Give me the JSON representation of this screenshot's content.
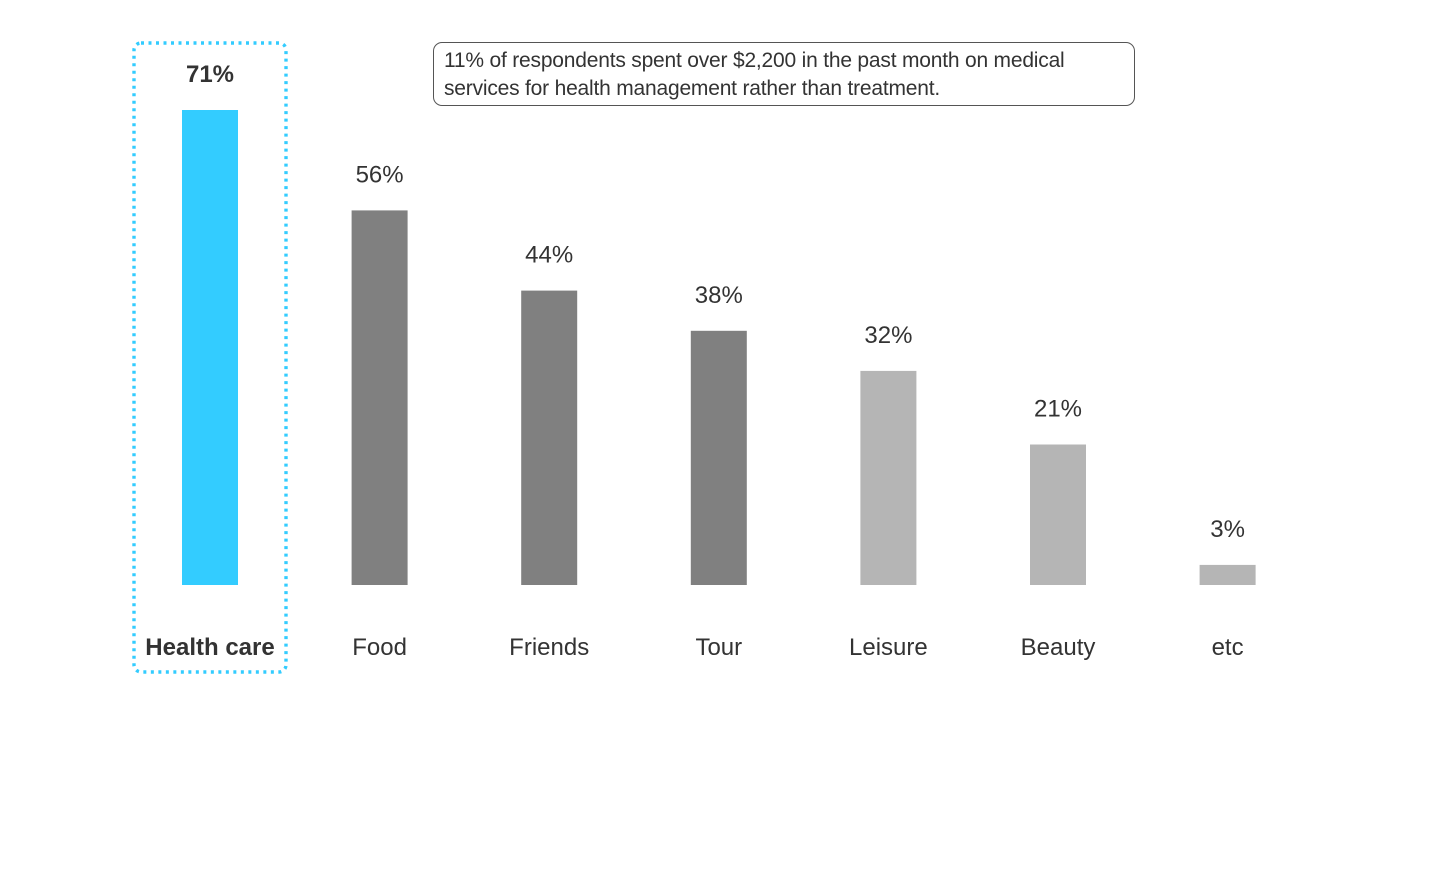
{
  "chart_data": {
    "type": "bar",
    "categories": [
      "Health care",
      "Food",
      "Friends",
      "Tour",
      "Leisure",
      "Beauty",
      "etc"
    ],
    "values": [
      71,
      56,
      44,
      38,
      32,
      21,
      3
    ],
    "value_labels": [
      "71%",
      "56%",
      "44%",
      "38%",
      "32%",
      "21%",
      "3%"
    ],
    "unit": "%",
    "highlighted_category": "Health care",
    "bar_colors": [
      "#33ccff",
      "#808080",
      "#808080",
      "#808080",
      "#b5b5b5",
      "#b5b5b5",
      "#b5b5b5"
    ],
    "highlight_color": "#33ccff",
    "annotation": "11% of respondents spent over $2,200 in the past month on medical services for health management rather than treatment.",
    "title": "",
    "xlabel": "",
    "ylabel": "",
    "ylim": [
      0,
      71
    ],
    "grid": false,
    "legend": "none"
  }
}
